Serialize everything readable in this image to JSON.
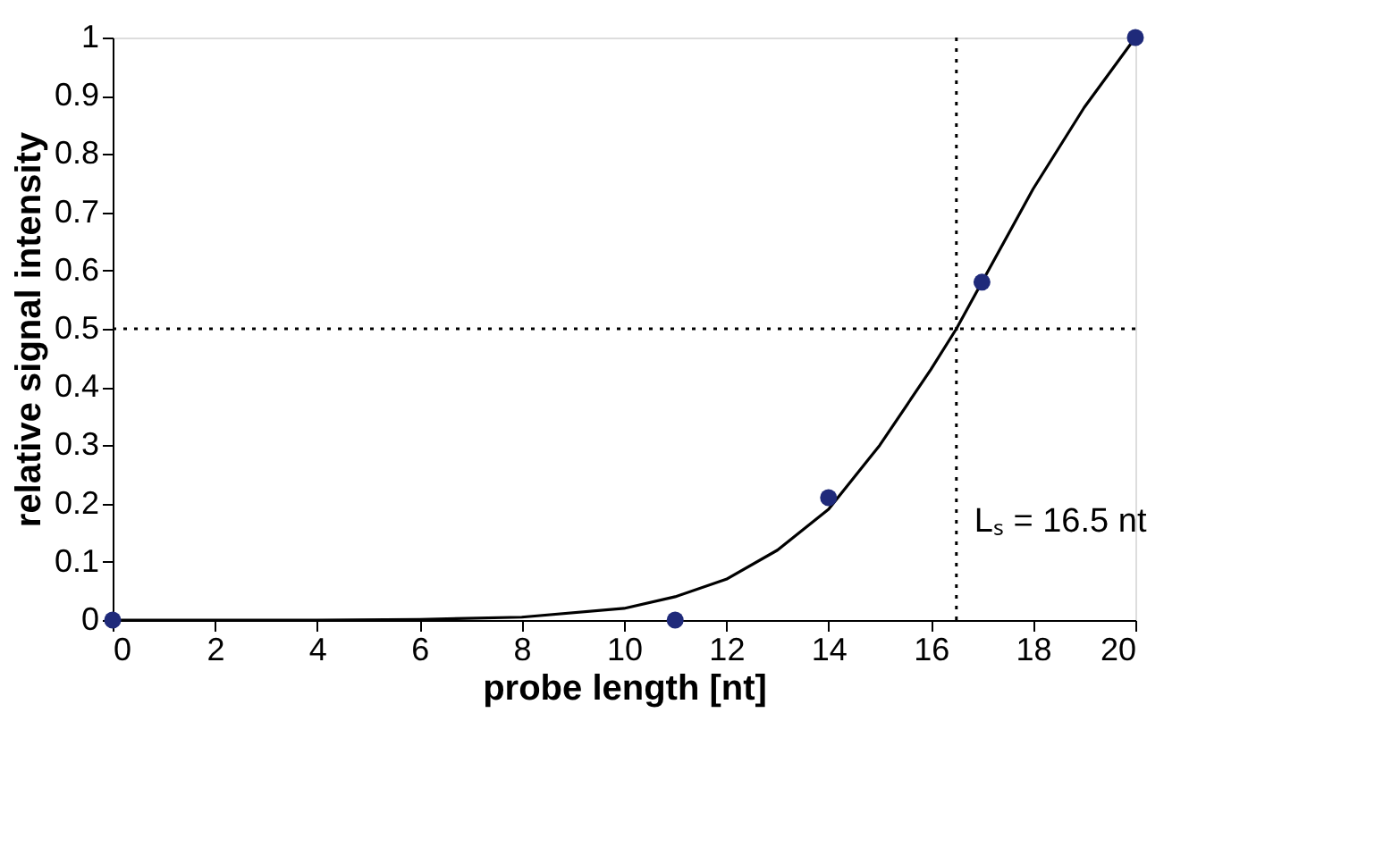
{
  "chart_data": {
    "type": "scatter",
    "xlabel": "probe length [nt]",
    "ylabel": "relative signal intensity",
    "xlim": [
      0,
      20
    ],
    "ylim": [
      0,
      1
    ],
    "xticks": [
      0,
      2,
      4,
      6,
      8,
      10,
      12,
      14,
      16,
      18,
      20
    ],
    "yticks": [
      0,
      0.1,
      0.2,
      0.3,
      0.4,
      0.5,
      0.6,
      0.7,
      0.8,
      0.9,
      1
    ],
    "grid": false,
    "marker": "circle",
    "series": [
      {
        "color": "#1f2a7a",
        "x": [
          0,
          11,
          14,
          17,
          20
        ],
        "values": [
          0,
          0,
          0.21,
          0.58,
          1.0
        ]
      },
      {
        "type": "line",
        "marker": "none",
        "color": "#000000",
        "line_style": "solid",
        "x": [
          0,
          4,
          6,
          8,
          10,
          11,
          12,
          13,
          14,
          15,
          16,
          16.5,
          17,
          18,
          19,
          20
        ],
        "values": [
          0,
          0,
          0.001,
          0.005,
          0.02,
          0.04,
          0.07,
          0.12,
          0.19,
          0.3,
          0.43,
          0.5,
          0.58,
          0.74,
          0.88,
          1.0
        ]
      }
    ],
    "ref_lines": [
      {
        "axis": "x",
        "value": 16.5,
        "label": "Lₛ = 16.5 nt",
        "color": "#000000",
        "line_style": "dotted"
      },
      {
        "axis": "y",
        "value": 0.5,
        "label": null,
        "color": "#000000",
        "line_style": "dotted"
      }
    ]
  }
}
